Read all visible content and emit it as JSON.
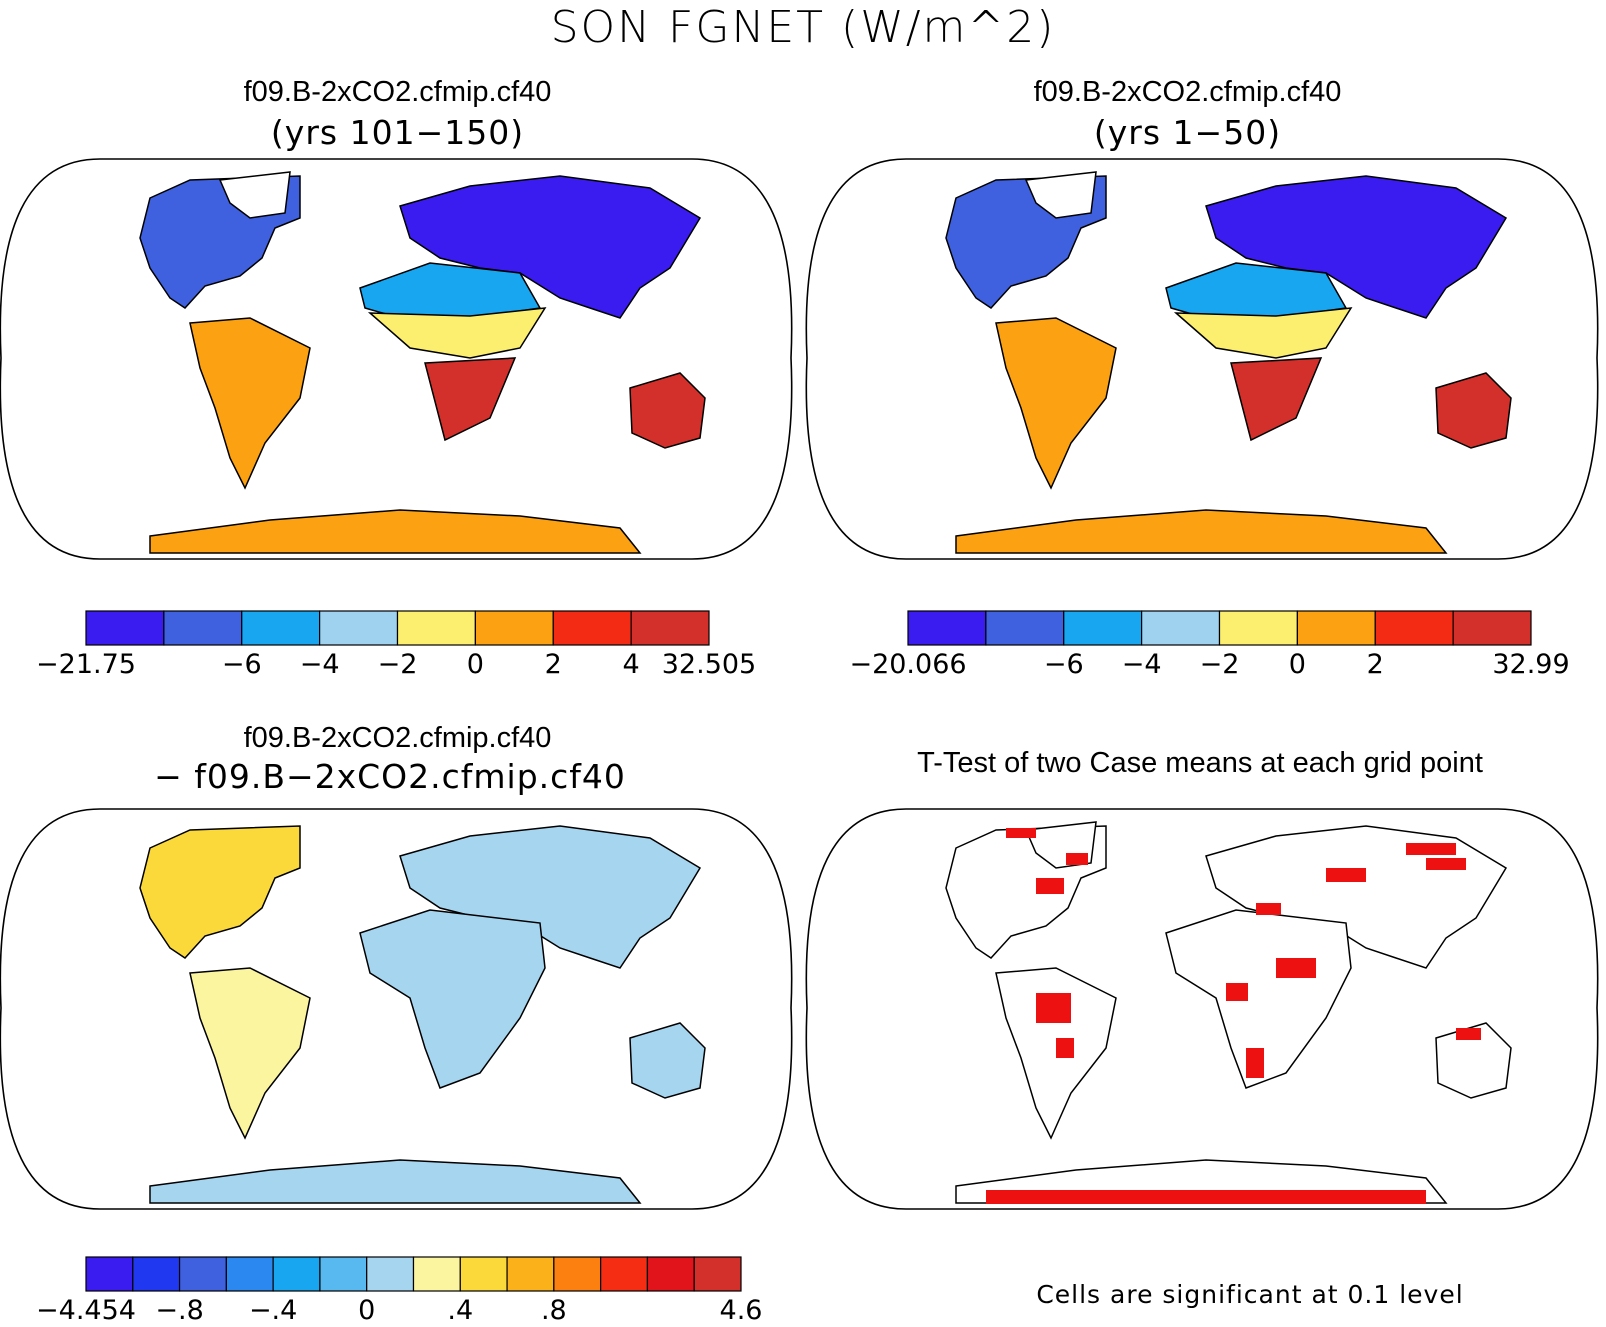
{
  "figure": {
    "title": "SON FGNET (W/m^2)"
  },
  "panels": {
    "top_left": {
      "title": "f09.B-2xCO2.cfmip.cf40",
      "subtitle": "(yrs 101−150)"
    },
    "top_right": {
      "title": "f09.B-2xCO2.cfmip.cf40",
      "subtitle": "(yrs 1−50)"
    },
    "bottom_left": {
      "title": "f09.B-2xCO2.cfmip.cf40",
      "subtitle": "−  f09.B−2xCO2.cfmip.cf40"
    },
    "bottom_right": {
      "title": "T-Test of two Case means at each grid point",
      "note": "Cells are significant at 0.1 level"
    }
  },
  "chart_data": [
    {
      "type": "heatmap",
      "panel": "top_left",
      "colorbar": {
        "colors": [
          "#3b1cf0",
          "#3f61e0",
          "#18a6f0",
          "#9ed2ef",
          "#fcee6e",
          "#fba112",
          "#f42b14",
          "#d3302b"
        ],
        "ticks": [
          "−21.75",
          "",
          "−6",
          "−4",
          "−2",
          "0",
          "2",
          "4",
          "32.505"
        ]
      },
      "regions": {
        "North America": "#3f61e0",
        "Europe/Asia": "#3b1cf0",
        "Sahara": "#18a6f0",
        "Sahel": "#fcee6e",
        "South America": "#fba112",
        "Southern Africa": "#d3302b",
        "Australia": "#d3302b",
        "Antarctica": "#fba112",
        "Greenland": "#ffffff"
      }
    },
    {
      "type": "heatmap",
      "panel": "top_right",
      "colorbar": {
        "colors": [
          "#3b1cf0",
          "#3f61e0",
          "#18a6f0",
          "#9ed2ef",
          "#fcee6e",
          "#fba112",
          "#f42b14",
          "#d3302b"
        ],
        "ticks": [
          "−20.066",
          "",
          "−6",
          "−4",
          "−2",
          "0",
          "2",
          "",
          "32.99"
        ]
      },
      "regions": {
        "North America": "#3f61e0",
        "Europe/Asia": "#3b1cf0",
        "Sahara": "#18a6f0",
        "Sahel": "#fcee6e",
        "South America": "#fba112",
        "Southern Africa": "#d3302b",
        "Australia": "#d3302b",
        "Antarctica": "#fba112",
        "Greenland": "#ffffff"
      }
    },
    {
      "type": "heatmap",
      "panel": "bottom_left",
      "colorbar": {
        "colors": [
          "#3b1cf0",
          "#2039f0",
          "#3f61e0",
          "#2a88f0",
          "#18a6f0",
          "#58b8f0",
          "#a6d5f0",
          "#fcf5a0",
          "#fcd93a",
          "#fbb21a",
          "#fb8010",
          "#f52d12",
          "#e0141a",
          "#d3302b"
        ],
        "ticks": [
          "−4.454",
          "",
          "−.8",
          "",
          "−.4",
          "",
          "0",
          "",
          ".4",
          "",
          ".8",
          "",
          "",
          "",
          "4.6"
        ]
      },
      "regions": {
        "North America": "#fcd93a",
        "Europe/Asia": "#a6d5f0",
        "Africa": "#a6d5f0",
        "South America": "#fcf5a0",
        "Australia": "#a6d5f0",
        "Antarctica": "#a6d5f0"
      }
    },
    {
      "type": "heatmap",
      "panel": "bottom_right",
      "colorbar": {
        "colors": [
          "#ffffff",
          "#ee1111"
        ],
        "ticks": []
      },
      "regions": {
        "significant": "#ee1111",
        "not_significant": "#ffffff"
      }
    }
  ]
}
